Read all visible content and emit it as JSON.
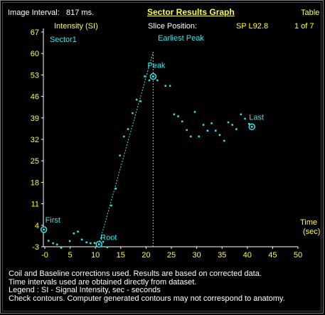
{
  "header": {
    "image_interval_label": "Image Interval:",
    "image_interval_value": "817 ms.",
    "title": "Sector Results Graph",
    "table_label": "Table",
    "slice_position_label": "Slice Position:",
    "slice_position_value": "SP  L92.8",
    "page_indicator": "1 of  7"
  },
  "colors": {
    "accent": "#33e6e6",
    "title": "#ffff33",
    "text": "#ffffff",
    "background": "#000000"
  },
  "chart_data": {
    "type": "scatter",
    "ylabel": "Intensity (SI)",
    "xlabel_line1": "Time",
    "xlabel_line2": "(sec)",
    "series_label": "Sector1",
    "xlim": [
      -1.5,
      50
    ],
    "ylim": [
      -3,
      67
    ],
    "x_ticks": [
      0,
      5,
      10,
      15,
      20,
      25,
      30,
      35,
      40,
      45,
      50
    ],
    "x_tick_labels": [
      "-0",
      "5",
      "10",
      "15",
      "20",
      "25",
      "30",
      "35",
      "40",
      "45",
      "50"
    ],
    "y_ticks": [
      67,
      60,
      53,
      46,
      39,
      32,
      25,
      18,
      11,
      4,
      -3
    ],
    "y_tick_labels": [
      "67",
      "60",
      "53",
      "46",
      "39",
      "32",
      "25",
      "18",
      "11",
      "4",
      "-3"
    ],
    "earliest_peak_x": 21.4,
    "earliest_peak_label": "Earliest Peak",
    "fit_line": [
      [
        10.7,
        -2.2
      ],
      [
        21.4,
        60.5
      ]
    ],
    "markers": [
      {
        "label": "First",
        "x": -0.2,
        "y": 2.6
      },
      {
        "label": "Root",
        "x": 10.7,
        "y": -2.2
      },
      {
        "label": "Peak",
        "x": 21.4,
        "y": 52.5
      },
      {
        "label": "Last",
        "x": 40.9,
        "y": 36.1
      }
    ],
    "points": [
      [
        -0.2,
        2.6
      ],
      [
        0.7,
        -1.0
      ],
      [
        1.6,
        -1.8
      ],
      [
        2.4,
        -2.2
      ],
      [
        3.2,
        -3.3
      ],
      [
        4.9,
        -1.1
      ],
      [
        5.7,
        1.4
      ],
      [
        6.5,
        2.0
      ],
      [
        7.3,
        -0.6
      ],
      [
        8.2,
        -1.5
      ],
      [
        9.0,
        -1.8
      ],
      [
        9.8,
        -1.7
      ],
      [
        10.7,
        -2.2
      ],
      [
        11.5,
        -1.3
      ],
      [
        12.3,
        -3.1
      ],
      [
        13.1,
        10.5
      ],
      [
        14.0,
        16.0
      ],
      [
        14.8,
        26.8
      ],
      [
        15.6,
        33.0
      ],
      [
        16.4,
        35.4
      ],
      [
        17.3,
        40.6
      ],
      [
        18.1,
        45.0
      ],
      [
        18.9,
        44.5
      ],
      [
        19.7,
        52.6
      ],
      [
        20.6,
        51.3
      ],
      [
        21.4,
        52.5
      ],
      [
        22.2,
        51.3
      ],
      [
        23.8,
        49.5
      ],
      [
        24.7,
        49.5
      ],
      [
        25.5,
        40.2
      ],
      [
        26.3,
        39.6
      ],
      [
        27.1,
        37.9
      ],
      [
        28.0,
        35.1
      ],
      [
        28.8,
        33.0
      ],
      [
        29.6,
        41.0
      ],
      [
        30.4,
        33.0
      ],
      [
        31.3,
        36.8
      ],
      [
        32.1,
        34.9
      ],
      [
        32.9,
        37.3
      ],
      [
        33.7,
        34.9
      ],
      [
        34.5,
        33.5
      ],
      [
        35.4,
        31.6
      ],
      [
        36.2,
        37.6
      ],
      [
        37.0,
        36.8
      ],
      [
        37.8,
        35.4
      ],
      [
        38.7,
        40.2
      ],
      [
        39.5,
        38.8
      ],
      [
        40.3,
        37.1
      ],
      [
        40.9,
        36.1
      ]
    ]
  }
}
